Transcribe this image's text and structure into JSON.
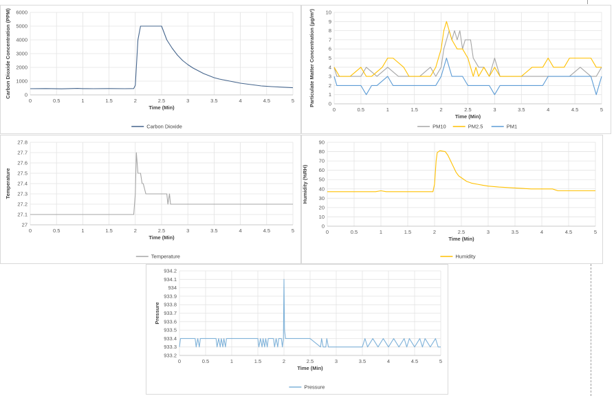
{
  "chart_data": [
    {
      "id": "co2",
      "type": "line",
      "xlabel": "Time (Min)",
      "ylabel": "Carbon Dioxide Concentration (PPM)",
      "xlim": [
        0,
        5
      ],
      "ylim": [
        0,
        6000
      ],
      "xticks": [
        0,
        0.5,
        1,
        1.5,
        2,
        2.5,
        3,
        3.5,
        4,
        4.5,
        5
      ],
      "yticks": [
        0,
        1000,
        2000,
        3000,
        4000,
        5000,
        6000
      ],
      "grid": true,
      "legend": "bottom",
      "series": [
        {
          "name": "Carbon Dioxide",
          "color": "#44648c",
          "x": [
            0,
            0.3,
            0.6,
            0.9,
            1.0,
            1.2,
            1.5,
            1.8,
            1.97,
            2.0,
            2.05,
            2.1,
            2.2,
            2.3,
            2.4,
            2.5,
            2.55,
            2.6,
            2.7,
            2.8,
            2.9,
            3.0,
            3.1,
            3.2,
            3.3,
            3.4,
            3.5,
            3.6,
            3.8,
            4.0,
            4.2,
            4.4,
            4.6,
            4.8,
            5.0
          ],
          "y": [
            450,
            460,
            440,
            470,
            455,
            450,
            460,
            450,
            460,
            700,
            4000,
            5000,
            5000,
            5000,
            5000,
            5000,
            4500,
            4000,
            3400,
            2900,
            2500,
            2200,
            1950,
            1750,
            1550,
            1400,
            1250,
            1150,
            1000,
            850,
            750,
            650,
            600,
            560,
            520
          ]
        }
      ]
    },
    {
      "id": "pm",
      "type": "line",
      "xlabel": "Time (Min)",
      "ylabel": "Particulate Matter Concentration (µg/m³)",
      "xlim": [
        0,
        5
      ],
      "ylim": [
        0,
        10
      ],
      "xticks": [
        0,
        0.5,
        1,
        1.5,
        2,
        2.5,
        3,
        3.5,
        4,
        4.5,
        5
      ],
      "yticks": [
        0,
        1,
        2,
        3,
        4,
        5,
        6,
        7,
        8,
        9,
        10
      ],
      "grid": true,
      "legend": "bottom",
      "series": [
        {
          "name": "PM10",
          "color": "#a5a5a5",
          "x": [
            0,
            0.05,
            0.1,
            0.4,
            0.5,
            0.6,
            0.8,
            1.0,
            1.2,
            1.4,
            1.6,
            1.8,
            1.9,
            2.0,
            2.05,
            2.1,
            2.15,
            2.2,
            2.25,
            2.3,
            2.35,
            2.4,
            2.45,
            2.5,
            2.55,
            2.6,
            2.7,
            2.8,
            2.9,
            3.0,
            3.05,
            3.1,
            3.2,
            3.4,
            3.6,
            3.8,
            4.0,
            4.2,
            4.4,
            4.6,
            4.8,
            4.9,
            5.0
          ],
          "y": [
            4,
            3,
            3,
            3,
            3,
            4,
            3,
            4,
            3,
            3,
            3,
            4,
            3,
            4,
            6,
            7,
            8,
            7,
            8,
            7,
            8,
            6,
            7,
            7,
            7,
            5,
            4,
            4,
            3,
            5,
            4,
            3,
            3,
            3,
            3,
            3,
            3,
            3,
            3,
            4,
            3,
            3,
            4
          ]
        },
        {
          "name": "PM2.5",
          "color": "#ffc000",
          "x": [
            0,
            0.1,
            0.3,
            0.5,
            0.6,
            0.7,
            0.9,
            1.0,
            1.1,
            1.3,
            1.4,
            1.6,
            1.8,
            1.9,
            2.0,
            2.05,
            2.1,
            2.15,
            2.2,
            2.3,
            2.4,
            2.5,
            2.55,
            2.6,
            2.65,
            2.7,
            2.8,
            2.9,
            3.0,
            3.1,
            3.3,
            3.5,
            3.7,
            3.9,
            4.0,
            4.1,
            4.3,
            4.4,
            4.6,
            4.8,
            4.9,
            5.0
          ],
          "y": [
            4,
            3,
            3,
            4,
            3,
            3,
            4,
            5,
            5,
            4,
            3,
            3,
            3,
            4,
            6,
            8,
            9,
            8,
            7,
            6,
            6,
            5,
            4,
            3,
            4,
            3,
            4,
            3,
            4,
            3,
            3,
            3,
            4,
            4,
            5,
            4,
            4,
            5,
            5,
            5,
            4,
            4
          ]
        },
        {
          "name": "PM1",
          "color": "#5b9bd5",
          "x": [
            0,
            0.05,
            0.1,
            0.3,
            0.5,
            0.6,
            0.7,
            0.8,
            1.0,
            1.1,
            1.3,
            1.5,
            1.7,
            1.9,
            2.0,
            2.05,
            2.1,
            2.15,
            2.2,
            2.3,
            2.4,
            2.5,
            2.7,
            2.9,
            3.0,
            3.1,
            3.3,
            3.5,
            3.7,
            3.9,
            4.0,
            4.2,
            4.4,
            4.6,
            4.8,
            4.9,
            5.0
          ],
          "y": [
            3,
            2,
            2,
            2,
            2,
            1,
            2,
            2,
            3,
            2,
            2,
            2,
            2,
            2,
            3,
            4,
            5,
            4,
            3,
            3,
            3,
            2,
            2,
            2,
            1,
            2,
            2,
            2,
            2,
            2,
            3,
            3,
            3,
            3,
            3,
            1,
            3
          ]
        }
      ]
    },
    {
      "id": "temp",
      "type": "line",
      "xlabel": "Time (Min)",
      "ylabel": "Temperature",
      "xlim": [
        0,
        5
      ],
      "ylim": [
        27,
        27.8
      ],
      "xticks": [
        0,
        0.5,
        1,
        1.5,
        2,
        2.5,
        3,
        3.5,
        4,
        4.5,
        5
      ],
      "yticks": [
        27,
        27.1,
        27.2,
        27.3,
        27.4,
        27.5,
        27.6,
        27.7,
        27.8
      ],
      "grid": true,
      "legend": "bottom",
      "series": [
        {
          "name": "Temperature",
          "color": "#a5a5a5",
          "x": [
            0,
            1.97,
            2.0,
            2.02,
            2.05,
            2.1,
            2.13,
            2.15,
            2.2,
            2.25,
            2.3,
            2.5,
            2.6,
            2.62,
            2.65,
            2.67,
            2.7,
            3.0,
            4.0,
            5.0
          ],
          "y": [
            27.1,
            27.1,
            27.3,
            27.7,
            27.5,
            27.5,
            27.4,
            27.4,
            27.3,
            27.3,
            27.3,
            27.3,
            27.3,
            27.2,
            27.3,
            27.2,
            27.2,
            27.2,
            27.2,
            27.2
          ]
        }
      ]
    },
    {
      "id": "hum",
      "type": "line",
      "xlabel": "Time (Min)",
      "ylabel": "Humidity (%RH)",
      "xlim": [
        0,
        5
      ],
      "ylim": [
        0,
        90
      ],
      "xticks": [
        0,
        0.5,
        1,
        1.5,
        2,
        2.5,
        3,
        3.5,
        4,
        4.5,
        5
      ],
      "yticks": [
        0,
        10,
        20,
        30,
        40,
        50,
        60,
        70,
        80,
        90
      ],
      "grid": true,
      "legend": "bottom",
      "series": [
        {
          "name": "Humidity",
          "color": "#ffc000",
          "x": [
            0,
            0.5,
            0.9,
            1.0,
            1.1,
            1.5,
            1.97,
            2.0,
            2.03,
            2.05,
            2.1,
            2.2,
            2.25,
            2.3,
            2.35,
            2.4,
            2.45,
            2.5,
            2.6,
            2.7,
            2.8,
            2.9,
            3.0,
            3.2,
            3.5,
            3.8,
            4.0,
            4.2,
            4.3,
            4.5,
            5.0
          ],
          "y": [
            37,
            37,
            37,
            38,
            37,
            37,
            37,
            45,
            70,
            79,
            81,
            80,
            76,
            70,
            64,
            58,
            54,
            52,
            48,
            46,
            45,
            44,
            43,
            42,
            41,
            40,
            40,
            40,
            38,
            38,
            38
          ]
        }
      ]
    },
    {
      "id": "pres",
      "type": "line",
      "xlabel": "Time (Min)",
      "ylabel": "Pressure",
      "xlim": [
        0,
        5
      ],
      "ylim": [
        933.2,
        934.2
      ],
      "xticks": [
        0,
        0.5,
        1,
        1.5,
        2,
        2.5,
        3,
        3.5,
        4,
        4.5,
        5
      ],
      "yticks": [
        933.2,
        933.3,
        933.4,
        933.5,
        933.6,
        933.7,
        933.8,
        933.9,
        934,
        934.1,
        934.2
      ],
      "grid": true,
      "legend": "bottom",
      "series": [
        {
          "name": "Pressure",
          "color": "#7fb2d9",
          "x": [
            0,
            0.02,
            0.05,
            0.3,
            0.32,
            0.35,
            0.38,
            0.4,
            0.42,
            0.7,
            0.72,
            0.75,
            0.78,
            0.8,
            0.83,
            0.85,
            0.88,
            0.9,
            1.5,
            1.52,
            1.55,
            1.58,
            1.6,
            1.63,
            1.65,
            1.68,
            1.7,
            1.8,
            1.82,
            1.85,
            1.88,
            1.9,
            1.95,
            1.97,
            1.99,
            2.0,
            2.01,
            2.03,
            2.05,
            2.5,
            2.7,
            2.72,
            2.75,
            2.78,
            2.8,
            2.82,
            2.85,
            3.0,
            3.5,
            3.55,
            3.6,
            3.7,
            3.8,
            3.9,
            4.0,
            4.1,
            4.2,
            4.3,
            4.35,
            4.4,
            4.5,
            4.6,
            4.65,
            4.7,
            4.8,
            4.9,
            4.95,
            5.0
          ],
          "y": [
            933.3,
            933.4,
            933.4,
            933.4,
            933.3,
            933.4,
            933.3,
            933.4,
            933.4,
            933.4,
            933.3,
            933.4,
            933.3,
            933.4,
            933.3,
            933.4,
            933.3,
            933.4,
            933.4,
            933.3,
            933.4,
            933.3,
            933.4,
            933.3,
            933.4,
            933.3,
            933.4,
            933.4,
            933.3,
            933.4,
            933.3,
            933.4,
            933.4,
            933.3,
            933.4,
            934.1,
            933.5,
            933.4,
            933.4,
            933.4,
            933.3,
            933.4,
            933.3,
            933.3,
            933.3,
            933.4,
            933.3,
            933.3,
            933.3,
            933.4,
            933.3,
            933.4,
            933.3,
            933.4,
            933.3,
            933.4,
            933.3,
            933.4,
            933.3,
            933.4,
            933.3,
            933.4,
            933.3,
            933.4,
            933.3,
            933.4,
            933.3,
            933.3
          ]
        }
      ]
    }
  ]
}
